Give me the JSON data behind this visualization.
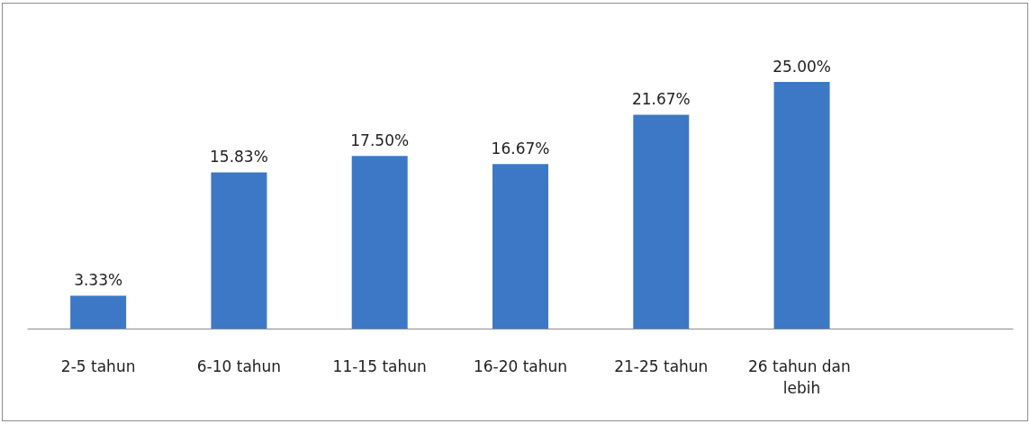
{
  "chart_data": {
    "type": "bar",
    "categories": [
      "2-5 tahun",
      "6-10 tahun",
      "11-15 tahun",
      "16-20 tahun",
      "21-25 tahun",
      "26 tahun dan lebih",
      null
    ],
    "values": [
      3.33,
      15.83,
      17.5,
      16.67,
      21.67,
      25.0,
      null
    ],
    "value_labels": [
      "3.33%",
      "15.83%",
      "17.50%",
      "16.67%",
      "21.67%",
      "25.00%",
      null
    ],
    "color": "#3d78c6"
  }
}
